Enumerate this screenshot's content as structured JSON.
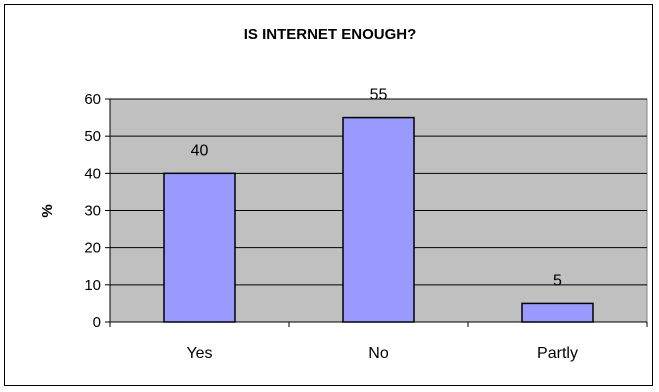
{
  "chart_data": {
    "type": "bar",
    "title": "IS INTERNET ENOUGH?",
    "xlabel": "",
    "ylabel": "%",
    "categories": [
      "Yes",
      "No",
      "Partly"
    ],
    "values": [
      40,
      55,
      5
    ],
    "ylim": [
      0,
      60
    ],
    "yticks": [
      0,
      10,
      20,
      30,
      40,
      50,
      60
    ],
    "grid": true,
    "legend": "none",
    "colors": {
      "bar_fill": "#9999ff",
      "bar_stroke": "#000000",
      "plot_background": "#c0c0c0",
      "gridline": "#000000"
    }
  }
}
